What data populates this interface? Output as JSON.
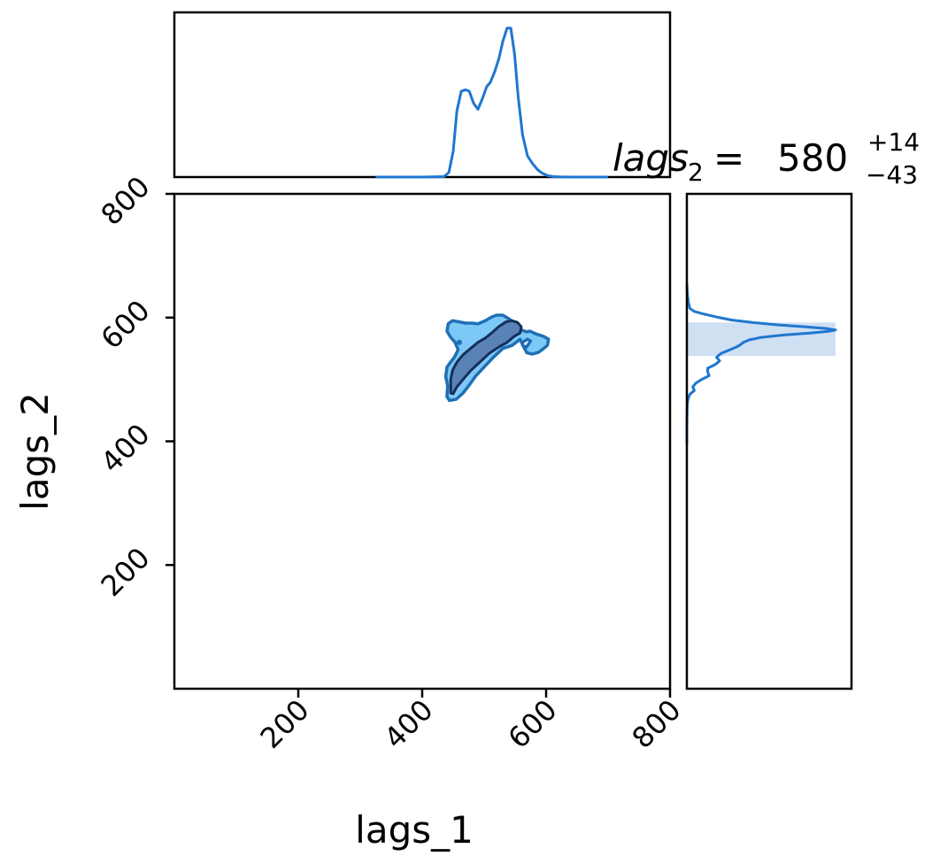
{
  "chart_data": {
    "type": "joint-density",
    "title": {
      "variable": "lags",
      "subscript": "2",
      "equals": "=",
      "median": "580",
      "upper": "+14",
      "lower": "−43"
    },
    "xlabel": "lags_1",
    "ylabel": "lags_2",
    "xlim": [
      0,
      800
    ],
    "ylim": [
      0,
      800
    ],
    "xticks": [
      "200",
      "400",
      "600",
      "800"
    ],
    "xtick_values": [
      200,
      400,
      600,
      800
    ],
    "yticks": [
      "200",
      "400",
      "600",
      "800"
    ],
    "ytick_values": [
      200,
      400,
      600,
      800
    ],
    "colors": {
      "line": "#1f77d0",
      "outer_fill": "#7cc8f7",
      "outer_edge": "#1f6fb4",
      "inner_fill": "#5b82b6",
      "inner_edge": "#14305a",
      "band": "#cfe0f3"
    },
    "top_marginal": {
      "x": [
        325,
        360,
        400,
        435,
        443,
        450,
        456,
        463,
        470,
        476,
        483,
        490,
        498,
        504,
        510,
        517,
        524,
        530,
        537,
        543,
        549,
        555,
        562,
        570,
        578,
        586,
        594,
        602,
        612,
        622,
        640,
        700
      ],
      "density": [
        0,
        0,
        0,
        0.003,
        0.03,
        0.17,
        0.44,
        0.57,
        0.58,
        0.57,
        0.49,
        0.45,
        0.53,
        0.6,
        0.63,
        0.7,
        0.79,
        0.9,
        0.99,
        0.99,
        0.82,
        0.53,
        0.28,
        0.14,
        0.09,
        0.05,
        0.025,
        0.01,
        0.003,
        0.001,
        0,
        0
      ]
    },
    "right_marginal": {
      "y": [
        655,
        640,
        625,
        615,
        610,
        606,
        601,
        596,
        592,
        588,
        585,
        582,
        580,
        578,
        575,
        572,
        568,
        564,
        560,
        556,
        552,
        548,
        542,
        536,
        530,
        524,
        518,
        512,
        506,
        500,
        494,
        488,
        482,
        476,
        470,
        464,
        458,
        450,
        440,
        420,
        395
      ],
      "density": [
        0,
        0.003,
        0.01,
        0.02,
        0.05,
        0.11,
        0.2,
        0.3,
        0.44,
        0.62,
        0.8,
        0.95,
        1.0,
        0.96,
        0.83,
        0.66,
        0.5,
        0.42,
        0.38,
        0.36,
        0.33,
        0.29,
        0.23,
        0.2,
        0.22,
        0.19,
        0.14,
        0.14,
        0.15,
        0.1,
        0.06,
        0.04,
        0.05,
        0.02,
        0.01,
        0.005,
        0.003,
        0.002,
        0.001,
        0,
        0
      ],
      "band": [
        538,
        592
      ]
    },
    "joint": {
      "outer_contour": [
        [
          440,
          472
        ],
        [
          444,
          466
        ],
        [
          455,
          468
        ],
        [
          466,
          478
        ],
        [
          476,
          491
        ],
        [
          486,
          505
        ],
        [
          500,
          520
        ],
        [
          515,
          536
        ],
        [
          530,
          550
        ],
        [
          545,
          555
        ],
        [
          558,
          565
        ],
        [
          564,
          552
        ],
        [
          569,
          543
        ],
        [
          578,
          541
        ],
        [
          588,
          544
        ],
        [
          596,
          550
        ],
        [
          602,
          555
        ],
        [
          604,
          565
        ],
        [
          595,
          570
        ],
        [
          585,
          573
        ],
        [
          574,
          578
        ],
        [
          568,
          577
        ],
        [
          560,
          580
        ],
        [
          550,
          590
        ],
        [
          540,
          598
        ],
        [
          530,
          604
        ],
        [
          520,
          604
        ],
        [
          512,
          601
        ],
        [
          502,
          595
        ],
        [
          490,
          590
        ],
        [
          480,
          591
        ],
        [
          470,
          591
        ],
        [
          460,
          593
        ],
        [
          449,
          595
        ],
        [
          442,
          590
        ],
        [
          440,
          578
        ],
        [
          446,
          568
        ],
        [
          453,
          560
        ],
        [
          458,
          548
        ],
        [
          452,
          536
        ],
        [
          445,
          527
        ],
        [
          440,
          520
        ],
        [
          438,
          505
        ],
        [
          441,
          490
        ]
      ],
      "outer_hole": [
        [
          562,
          560
        ],
        [
          570,
          565
        ],
        [
          575,
          562
        ],
        [
          568,
          552
        ],
        [
          562,
          555
        ]
      ],
      "outer_dot": [
        460,
        560
      ],
      "inner_contour": [
        [
          446,
          478
        ],
        [
          450,
          477
        ],
        [
          456,
          488
        ],
        [
          466,
          500
        ],
        [
          478,
          514
        ],
        [
          493,
          528
        ],
        [
          508,
          542
        ],
        [
          523,
          552
        ],
        [
          537,
          560
        ],
        [
          549,
          570
        ],
        [
          558,
          575
        ],
        [
          560,
          585
        ],
        [
          554,
          592
        ],
        [
          545,
          595
        ],
        [
          535,
          593
        ],
        [
          523,
          585
        ],
        [
          512,
          575
        ],
        [
          502,
          567
        ],
        [
          490,
          560
        ],
        [
          478,
          550
        ],
        [
          466,
          540
        ],
        [
          456,
          528
        ],
        [
          449,
          515
        ],
        [
          446,
          500
        ],
        [
          446,
          488
        ]
      ]
    }
  }
}
